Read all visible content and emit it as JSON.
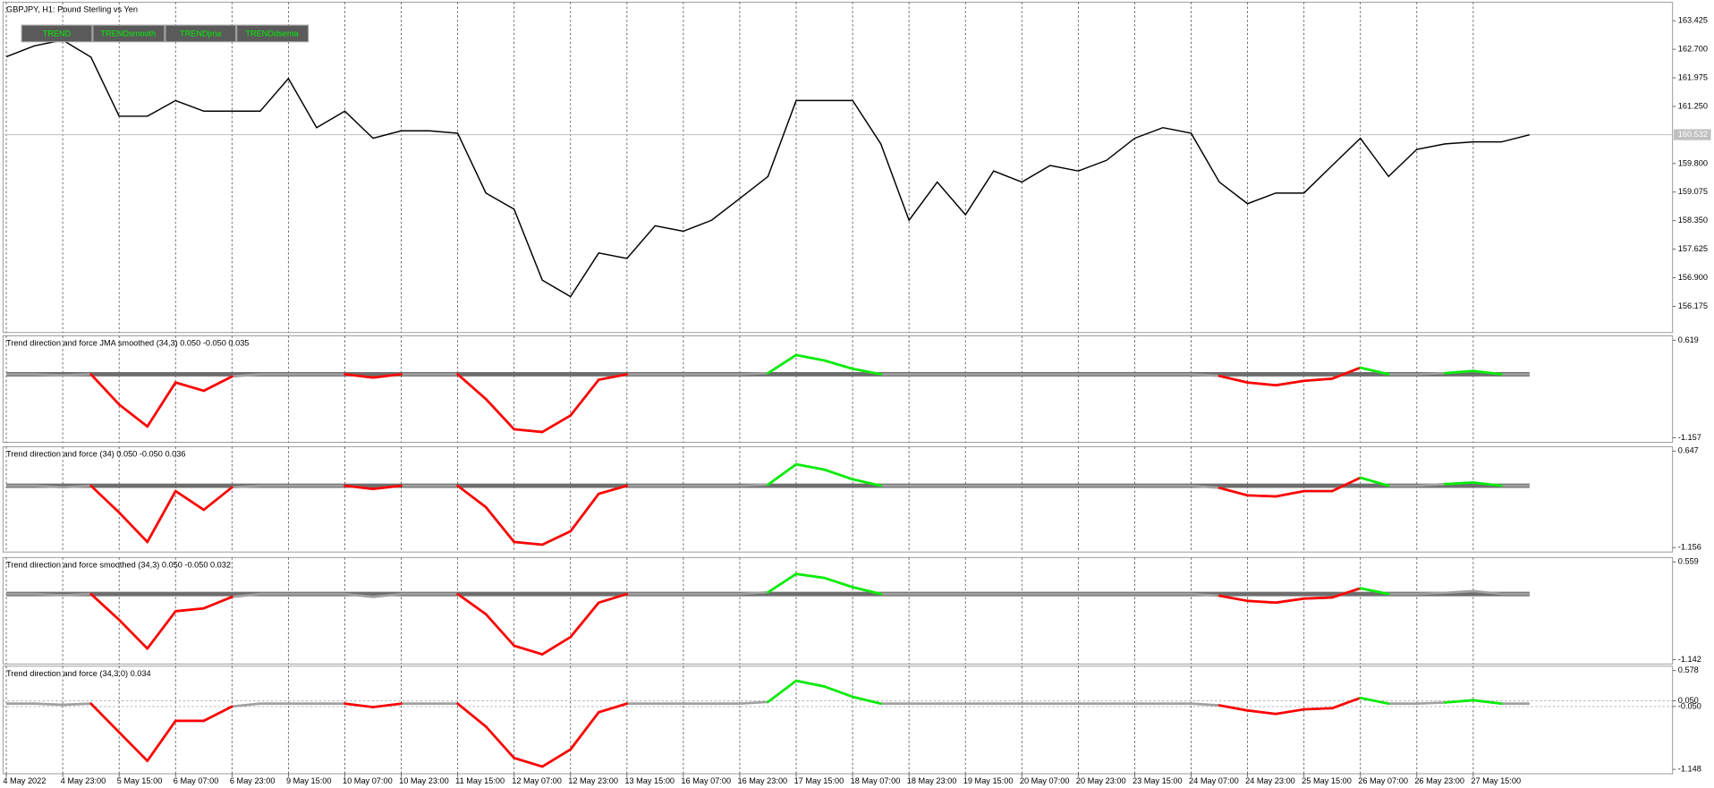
{
  "buttons": [
    "TREND",
    "TRENDsmooth",
    "TRENDjma",
    "TRENDdsema"
  ],
  "chart_data": [
    {
      "type": "line",
      "title": "GBPJPY, H1:  Pound Sterling vs Yen",
      "color": "#000000",
      "grid": true,
      "values": [
        162.51,
        162.79,
        162.93,
        162.5,
        161.0,
        161.0,
        161.4,
        161.13,
        161.13,
        161.13,
        161.96,
        160.71,
        161.13,
        160.44,
        160.63,
        160.63,
        160.57,
        159.05,
        158.64,
        156.84,
        156.42,
        157.53,
        157.39,
        158.22,
        158.08,
        158.36,
        158.91,
        159.47,
        161.4,
        161.4,
        161.4,
        160.3,
        158.36,
        159.33,
        158.5,
        159.61,
        159.33,
        159.75,
        159.61,
        159.88,
        160.44,
        160.71,
        160.57,
        159.33,
        158.78,
        159.05,
        159.05,
        159.75,
        160.44,
        159.47,
        160.16,
        160.3,
        160.35,
        160.35,
        160.53
      ],
      "ylim": [
        155.51,
        163.895
      ],
      "yticks": [
        163.425,
        {
          "value": 162.7,
          "label": "162.700"
        },
        161.975,
        {
          "value": 161.25,
          "label": "161.250"
        },
        {
          "value": 159.8,
          "label": "159.800"
        },
        159.075,
        {
          "value": 158.35,
          "label": "158.350"
        },
        157.625,
        {
          "value": 156.9,
          "label": "156.900"
        },
        156.175
      ],
      "current_price": 160.532
    },
    {
      "type": "trend",
      "title": "Trend direction and force JMA smoothed (34,3) 0.050 -0.050 0.035",
      "grid": true,
      "zero_line": true,
      "color": "#a0a0a0",
      "up_color": "#00ee00",
      "down_color": "#ff0000",
      "levels": [
        0.05,
        -0.05
      ],
      "values": [
        0,
        0,
        -0.02,
        0,
        -0.55,
        -0.95,
        -0.15,
        -0.3,
        -0.04,
        0,
        0,
        0,
        0,
        -0.06,
        0,
        0,
        0,
        -0.45,
        -1.0,
        -1.05,
        -0.75,
        -0.1,
        0,
        0,
        0,
        0,
        0,
        0.02,
        0.35,
        0.25,
        0.1,
        0,
        0,
        0,
        0,
        0,
        0,
        0,
        0,
        0,
        0,
        0,
        0,
        -0.03,
        -0.15,
        -0.2,
        -0.12,
        -0.08,
        0.12,
        0,
        0,
        0.02,
        0.06,
        0,
        0
      ],
      "ylim": [
        -1.157,
        0.619
      ],
      "yticks": [
        0.619,
        -1.157
      ]
    },
    {
      "type": "trend",
      "title": "Trend direction and force (34) 0.050 -0.050 0.036",
      "grid": true,
      "zero_line": true,
      "color": "#a0a0a0",
      "up_color": "#00ee00",
      "down_color": "#ff0000",
      "levels": [
        0.05,
        -0.05
      ],
      "values": [
        0,
        0,
        -0.03,
        0,
        -0.5,
        -1.05,
        -0.1,
        -0.45,
        -0.03,
        0,
        0,
        0,
        0,
        -0.06,
        0,
        0,
        0,
        -0.4,
        -1.05,
        -1.1,
        -0.85,
        -0.15,
        0,
        0,
        0,
        0,
        0,
        0.02,
        0.4,
        0.3,
        0.12,
        0,
        0,
        0,
        0,
        0,
        0,
        0,
        0,
        0,
        0,
        0,
        0,
        -0.04,
        -0.18,
        -0.2,
        -0.1,
        -0.1,
        0.15,
        0,
        0,
        0.03,
        0.06,
        0,
        0
      ],
      "ylim": [
        -1.156,
        0.647
      ],
      "yticks": [
        0.647,
        -1.156
      ]
    },
    {
      "type": "trend",
      "title": "Trend direction and force smoothed (34,3) 0.050 -0.050 0.032",
      "grid": true,
      "zero_line": true,
      "color": "#a0a0a0",
      "up_color": "#00ee00",
      "down_color": "#ff0000",
      "levels": [
        0.05,
        -0.05
      ],
      "values": [
        0,
        0,
        -0.02,
        0,
        -0.45,
        -0.95,
        -0.3,
        -0.25,
        -0.05,
        0,
        0,
        0,
        0,
        -0.05,
        0,
        0,
        0,
        -0.35,
        -0.9,
        -1.05,
        -0.75,
        -0.15,
        0,
        0,
        0,
        0,
        0,
        0.03,
        0.35,
        0.28,
        0.12,
        0,
        0,
        0,
        0,
        0,
        0,
        0,
        0,
        0,
        0,
        0,
        0,
        -0.03,
        -0.12,
        -0.15,
        -0.08,
        -0.06,
        0.1,
        0,
        0,
        0.02,
        0.05,
        0,
        0
      ],
      "ylim": [
        -1.142,
        0.559
      ],
      "yticks": [
        0.559,
        -1.142
      ]
    },
    {
      "type": "trend",
      "title": "Trend direction and force (34,3.0) 0.034",
      "grid": true,
      "level_lines": true,
      "color": "#a0a0a0",
      "up_color": "#00ee00",
      "down_color": "#ff0000",
      "levels": [
        0.05,
        -0.05
      ],
      "values": [
        0,
        0,
        -0.02,
        0,
        -0.5,
        -1.0,
        -0.3,
        -0.3,
        -0.05,
        0,
        0,
        0,
        0,
        -0.06,
        0,
        0,
        0,
        -0.4,
        -0.95,
        -1.1,
        -0.8,
        -0.15,
        0,
        0,
        0,
        0,
        0,
        0.03,
        0.4,
        0.3,
        0.12,
        0,
        0,
        0,
        0,
        0,
        0,
        0,
        0,
        0,
        0,
        0,
        0,
        -0.03,
        -0.12,
        -0.18,
        -0.1,
        -0.08,
        0.1,
        0,
        0,
        0.02,
        0.06,
        0,
        0
      ],
      "ylim": [
        -1.148,
        0.578
      ],
      "yticks": [
        0.578,
        {
          "value": 0.05,
          "label": "0.050"
        },
        {
          "value": -0.05,
          "label": "-0.050"
        },
        -1.148
      ],
      "categories": [
        "4 May 2022",
        null,
        "4 May 23:00",
        null,
        "5 May 15:00",
        null,
        "6 May 07:00",
        null,
        "6 May 23:00",
        null,
        "9 May 15:00",
        null,
        "10 May 07:00",
        null,
        "10 May 23:00",
        null,
        "11 May 15:00",
        null,
        "12 May 07:00",
        null,
        "12 May 23:00",
        null,
        "13 May 15:00",
        null,
        "16 May 07:00",
        null,
        "16 May 23:00",
        null,
        "17 May 15:00",
        null,
        "18 May 07:00",
        null,
        "18 May 23:00",
        null,
        "19 May 15:00",
        null,
        "20 May 07:00",
        null,
        "20 May 23:00",
        null,
        "23 May 15:00",
        null,
        "24 May 07:00",
        null,
        "24 May 23:00",
        null,
        "25 May 15:00",
        null,
        "26 May 07:00",
        null,
        "26 May 23:00",
        null,
        "27 May 15:00",
        null,
        null
      ]
    }
  ]
}
